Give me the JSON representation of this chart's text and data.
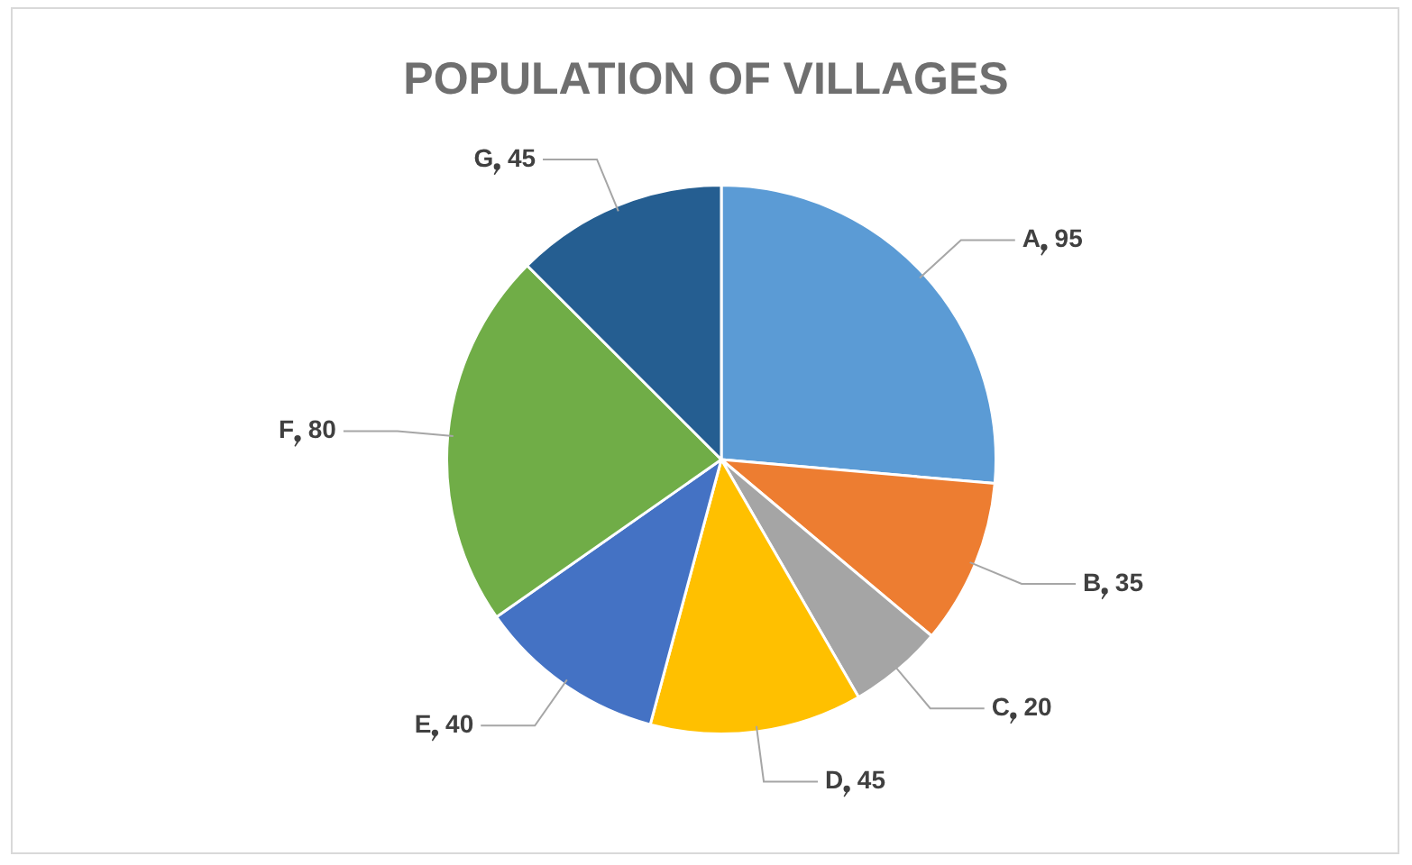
{
  "chart_data": {
    "type": "pie",
    "title": "POPULATION OF VILLAGES",
    "categories": [
      "A",
      "B",
      "C",
      "D",
      "E",
      "F",
      "G"
    ],
    "values": [
      95,
      35,
      20,
      45,
      40,
      80,
      45
    ],
    "colors": [
      "#5b9bd5",
      "#ed7d31",
      "#a5a5a5",
      "#ffc000",
      "#4472c4",
      "#70ad47",
      "#255e91"
    ],
    "data_labels": true
  }
}
